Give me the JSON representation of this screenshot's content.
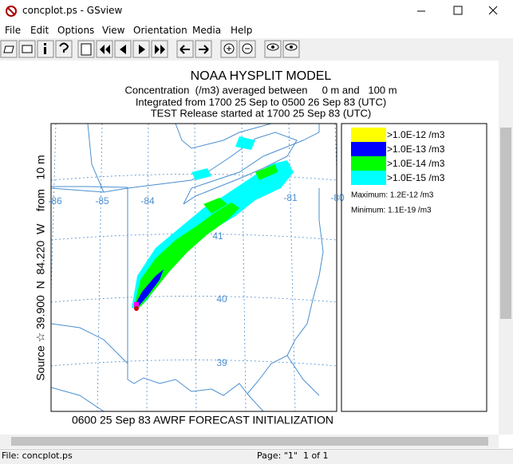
{
  "window": {
    "title": "concplot.ps - GSview"
  },
  "menu": [
    "File",
    "Edit",
    "Options",
    "View",
    "Orientation",
    "Media",
    "Help"
  ],
  "plot": {
    "title": "NOAA HYSPLIT MODEL",
    "subtitle": [
      "Concentration  (/m3) averaged between     0 m and   100 m",
      "Integrated from 1700 25 Sep to 0500 26 Sep 83 (UTC)",
      "TEST Release started at 1700 25 Sep 83 (UTC)"
    ],
    "side_label": "Source ☆ 39.900  N  84.220  W    from   10 m",
    "lon_labels": [
      "-86",
      "-85",
      "-84",
      "-81",
      "-80"
    ],
    "lat_labels": [
      "41",
      "40",
      "39"
    ],
    "footer": "0600 25 Sep 83 AWRF FORECAST INITIALIZATION"
  },
  "legend": {
    "entries": [
      {
        "label": ">1.0E-12 /m3",
        "color": "#ffff00"
      },
      {
        "label": ">1.0E-13 /m3",
        "color": "#0000ff"
      },
      {
        "label": ">1.0E-14 /m3",
        "color": "#00ff00"
      },
      {
        "label": ">1.0E-15 /m3",
        "color": "#00ffff"
      }
    ],
    "maximum": "Maximum: 1.2E-12 /m3",
    "minimum": "Minimum: 1.1E-19 /m3"
  },
  "status": {
    "file": "File: concplot.ps",
    "page": "Page: \"1\"  1 of 1"
  }
}
